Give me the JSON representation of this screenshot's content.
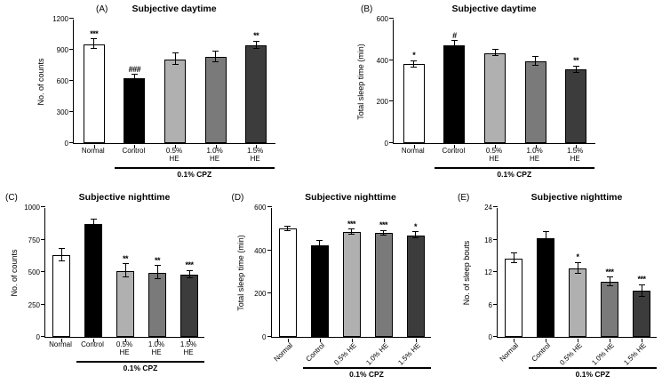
{
  "figure": {
    "background": "#ffffff",
    "bar_colors": [
      "#ffffff",
      "#000000",
      "#b0b0b0",
      "#7a7a7a",
      "#3c3c3c"
    ],
    "axis_color": "#000000"
  },
  "chart_data": [
    {
      "type": "bar",
      "panel": "(A)",
      "title": "Subjective daytime",
      "ylabel": "No. of counts",
      "ylim": [
        0,
        1200
      ],
      "yticks": [
        0,
        300,
        600,
        900,
        1200
      ],
      "categories": [
        "Normal",
        "Control",
        "0.5% HE",
        "1.0% HE",
        "1.5% HE"
      ],
      "values": [
        955,
        630,
        810,
        830,
        945
      ],
      "errors": [
        45,
        30,
        55,
        50,
        35
      ],
      "annotations": [
        "***",
        "###",
        "",
        "",
        "**"
      ],
      "group_label": "0.1% CPZ",
      "group_span": [
        1,
        4
      ],
      "legend": "none",
      "grid": false
    },
    {
      "type": "bar",
      "panel": "(B)",
      "title": "Subjective daytime",
      "ylabel": "Total sleep time (min)",
      "ylim": [
        0,
        600
      ],
      "yticks": [
        0,
        200,
        400,
        600
      ],
      "categories": [
        "Normal",
        "Control",
        "0.5% HE",
        "1.0% HE",
        "1.5% HE"
      ],
      "values": [
        380,
        470,
        435,
        395,
        355
      ],
      "errors": [
        15,
        22,
        15,
        20,
        15
      ],
      "annotations": [
        "*",
        "#",
        "",
        "",
        "**"
      ],
      "group_label": "0.1% CPZ",
      "group_span": [
        1,
        4
      ],
      "legend": "none",
      "grid": false
    },
    {
      "type": "bar",
      "panel": "(C)",
      "title": "Subjective nighttime",
      "ylabel": "No. of counts",
      "ylim": [
        0,
        1000
      ],
      "yticks": [
        0,
        250,
        500,
        750,
        1000
      ],
      "categories": [
        "Normal",
        "Control",
        "0.5% HE",
        "1.0% HE",
        "1.5% HE"
      ],
      "values": [
        630,
        870,
        510,
        495,
        480
      ],
      "errors": [
        50,
        35,
        50,
        50,
        30
      ],
      "annotations": [
        "",
        "",
        "**",
        "**",
        "***"
      ],
      "group_label": "0.1% CPZ",
      "group_span": [
        1,
        4
      ],
      "legend": "none",
      "grid": false
    },
    {
      "type": "bar",
      "panel": "(D)",
      "title": "Subjective nighttime",
      "ylabel": "Total sleep time (min)",
      "ylim": [
        0,
        600
      ],
      "yticks": [
        0,
        200,
        400,
        600
      ],
      "categories": [
        "Normal",
        "Control",
        "0.5% HE",
        "1.0% HE",
        "1.5% HE"
      ],
      "values": [
        500,
        425,
        485,
        480,
        470
      ],
      "errors": [
        10,
        20,
        12,
        10,
        15
      ],
      "annotations": [
        "",
        "",
        "***",
        "***",
        "*"
      ],
      "group_label": "0.1% CPZ",
      "group_span": [
        1,
        4
      ],
      "legend": "none",
      "grid": false
    },
    {
      "type": "bar",
      "panel": "(E)",
      "title": "Subjective nighttime",
      "ylabel": "No. of sleep bouts",
      "ylim": [
        0,
        24
      ],
      "yticks": [
        0,
        6,
        12,
        18,
        24
      ],
      "categories": [
        "Normal",
        "Control",
        "0.5% HE",
        "1.0% HE",
        "1.5% HE"
      ],
      "values": [
        14.5,
        18.2,
        12.7,
        10.2,
        8.5
      ],
      "errors": [
        0.9,
        1.2,
        1.0,
        0.8,
        1.1
      ],
      "annotations": [
        "",
        "",
        "*",
        "***",
        "***"
      ],
      "group_label": "0.1% CPZ",
      "group_span": [
        1,
        4
      ],
      "legend": "none",
      "grid": false
    }
  ]
}
